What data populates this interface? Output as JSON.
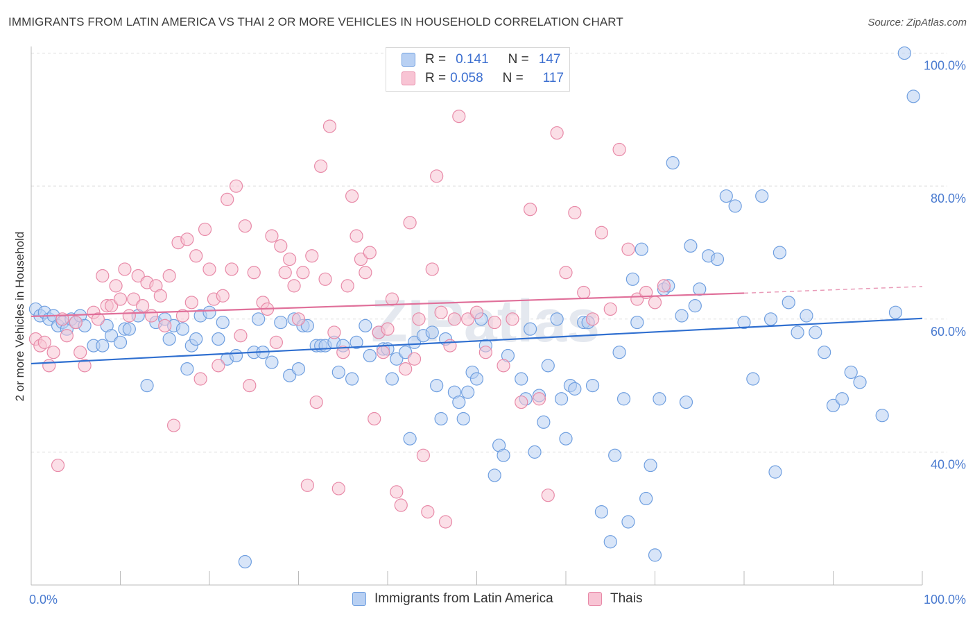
{
  "title": "IMMIGRANTS FROM LATIN AMERICA VS THAI 2 OR MORE VEHICLES IN HOUSEHOLD CORRELATION CHART",
  "source": "Source: ZipAtlas.com",
  "watermark": "ZIPatlas",
  "colors": {
    "blue_fill": "#b8d0f3",
    "blue_stroke": "#6f9fe0",
    "blue_line": "#2f6fd0",
    "pink_fill": "#f8c4d4",
    "pink_stroke": "#e88aa8",
    "pink_line": "#e0709a",
    "tick_text": "#4a7bd0",
    "grid": "#dddddd"
  },
  "legend_top": {
    "rows": [
      {
        "r_label": "R =",
        "r_value": "0.141",
        "n_label": "N =",
        "n_value": "147",
        "series": "blue"
      },
      {
        "r_label": "R =",
        "r_value": "0.058",
        "n_label": "N =",
        "n_value": "117",
        "series": "pink"
      }
    ]
  },
  "chart_data": {
    "type": "scatter",
    "title": "IMMIGRANTS FROM LATIN AMERICA VS THAI 2 OR MORE VEHICLES IN HOUSEHOLD CORRELATION CHART",
    "xlabel": "",
    "ylabel": "2 or more Vehicles in Household",
    "xlim": [
      0,
      100
    ],
    "ylim": [
      20,
      101
    ],
    "x_tick_labels": [
      "0.0%",
      "100.0%"
    ],
    "y_ticks": [
      40,
      60,
      80,
      100
    ],
    "y_tick_labels": [
      "40.0%",
      "60.0%",
      "80.0%",
      "100.0%"
    ],
    "grid": true,
    "legend_position": "top-center and bottom",
    "series": [
      {
        "name": "Immigrants from Latin America",
        "color": "blue",
        "trend": {
          "x": [
            0,
            100
          ],
          "y": [
            53.3,
            60.1
          ],
          "dashed_from": null
        },
        "points": [
          [
            0.5,
            61.5
          ],
          [
            1,
            60.5
          ],
          [
            1.5,
            61
          ],
          [
            2,
            60
          ],
          [
            2.5,
            60.5
          ],
          [
            3,
            59
          ],
          [
            3.5,
            59.5
          ],
          [
            4,
            58.5
          ],
          [
            4.5,
            60
          ],
          [
            5,
            59.5
          ],
          [
            5.5,
            60.5
          ],
          [
            6,
            59
          ],
          [
            7,
            56
          ],
          [
            8,
            56
          ],
          [
            8.5,
            59
          ],
          [
            9,
            57.5
          ],
          [
            10,
            56.5
          ],
          [
            10.5,
            58.5
          ],
          [
            11,
            58.5
          ],
          [
            12,
            60.5
          ],
          [
            13,
            50
          ],
          [
            14,
            59.5
          ],
          [
            15,
            60
          ],
          [
            15.5,
            57
          ],
          [
            16,
            59
          ],
          [
            17,
            58.5
          ],
          [
            17.5,
            52.5
          ],
          [
            18,
            56
          ],
          [
            18.5,
            57
          ],
          [
            19,
            60.5
          ],
          [
            20,
            61
          ],
          [
            21,
            57
          ],
          [
            21.5,
            59.5
          ],
          [
            22,
            54
          ],
          [
            23,
            54.5
          ],
          [
            24,
            23.5
          ],
          [
            25,
            55
          ],
          [
            25.5,
            60
          ],
          [
            26,
            55
          ],
          [
            27,
            53.5
          ],
          [
            28,
            59.5
          ],
          [
            29,
            51.5
          ],
          [
            29.5,
            60
          ],
          [
            30,
            52.5
          ],
          [
            30.5,
            59
          ],
          [
            31,
            59
          ],
          [
            32,
            56
          ],
          [
            32.5,
            56
          ],
          [
            33,
            56
          ],
          [
            34,
            56.5
          ],
          [
            34.5,
            52
          ],
          [
            35,
            56
          ],
          [
            36,
            51
          ],
          [
            36.5,
            56.5
          ],
          [
            37.5,
            59
          ],
          [
            38,
            54.5
          ],
          [
            39,
            58
          ],
          [
            39.5,
            55.5
          ],
          [
            40,
            55.5
          ],
          [
            40.5,
            51
          ],
          [
            41,
            54
          ],
          [
            42,
            55
          ],
          [
            42.5,
            42
          ],
          [
            43,
            56.5
          ],
          [
            44,
            57.5
          ],
          [
            45,
            58
          ],
          [
            45.5,
            50
          ],
          [
            46,
            45
          ],
          [
            46.5,
            57
          ],
          [
            47.5,
            49
          ],
          [
            48,
            47.5
          ],
          [
            48.5,
            45
          ],
          [
            49,
            49
          ],
          [
            49.5,
            52
          ],
          [
            50,
            51
          ],
          [
            50.5,
            60
          ],
          [
            51,
            56
          ],
          [
            52,
            36.5
          ],
          [
            52.5,
            41
          ],
          [
            53,
            39.5
          ],
          [
            53.5,
            54.5
          ],
          [
            55,
            51
          ],
          [
            55.5,
            48
          ],
          [
            56,
            58.5
          ],
          [
            56.5,
            40
          ],
          [
            57,
            48.5
          ],
          [
            57.5,
            44.5
          ],
          [
            58,
            53
          ],
          [
            59,
            60
          ],
          [
            59.5,
            48
          ],
          [
            60,
            42
          ],
          [
            60.5,
            50
          ],
          [
            61,
            49.5
          ],
          [
            62,
            59.5
          ],
          [
            62.5,
            59.5
          ],
          [
            63,
            50
          ],
          [
            64,
            31
          ],
          [
            65,
            26.5
          ],
          [
            65.5,
            39.5
          ],
          [
            66,
            55
          ],
          [
            66.5,
            48
          ],
          [
            67,
            29.5
          ],
          [
            67.5,
            66
          ],
          [
            68,
            59.5
          ],
          [
            68.5,
            70.5
          ],
          [
            69,
            33
          ],
          [
            69.5,
            38
          ],
          [
            70,
            24.5
          ],
          [
            70.5,
            48
          ],
          [
            71,
            64.5
          ],
          [
            71.5,
            65
          ],
          [
            72,
            83.5
          ],
          [
            73,
            60.5
          ],
          [
            73.5,
            47.5
          ],
          [
            74,
            71
          ],
          [
            74.5,
            62
          ],
          [
            75,
            64.5
          ],
          [
            76,
            69.5
          ],
          [
            77,
            69
          ],
          [
            78,
            78.5
          ],
          [
            79,
            77
          ],
          [
            80,
            59.5
          ],
          [
            81,
            51
          ],
          [
            82,
            78.5
          ],
          [
            83,
            60
          ],
          [
            83.5,
            37
          ],
          [
            84,
            70
          ],
          [
            85,
            62.5
          ],
          [
            86,
            58
          ],
          [
            87,
            60.5
          ],
          [
            88,
            58
          ],
          [
            89,
            55
          ],
          [
            90,
            47
          ],
          [
            91,
            48
          ],
          [
            92,
            52
          ],
          [
            93,
            50.5
          ],
          [
            95.5,
            45.5
          ],
          [
            97,
            61
          ],
          [
            98,
            100
          ],
          [
            99,
            93.5
          ]
        ]
      },
      {
        "name": "Thais",
        "color": "pink",
        "trend": {
          "x": [
            0,
            80,
            100
          ],
          "y": [
            60.4,
            63.9,
            64.9
          ],
          "dashed_from": 80
        },
        "points": [
          [
            0.5,
            57
          ],
          [
            1,
            56
          ],
          [
            1.5,
            56.5
          ],
          [
            2,
            53
          ],
          [
            2.5,
            55
          ],
          [
            3,
            38
          ],
          [
            3.5,
            60
          ],
          [
            4,
            57.5
          ],
          [
            5,
            59.5
          ],
          [
            5.5,
            55
          ],
          [
            6,
            53
          ],
          [
            7,
            61
          ],
          [
            7.5,
            60
          ],
          [
            8,
            66.5
          ],
          [
            8.5,
            62
          ],
          [
            9,
            62
          ],
          [
            9.5,
            65
          ],
          [
            10,
            63
          ],
          [
            10.5,
            67.5
          ],
          [
            11,
            60.5
          ],
          [
            11.5,
            63
          ],
          [
            12,
            66.5
          ],
          [
            12.5,
            62
          ],
          [
            13,
            65.5
          ],
          [
            13.5,
            60.5
          ],
          [
            14,
            65
          ],
          [
            14.5,
            63.5
          ],
          [
            15,
            59
          ],
          [
            15.5,
            66.5
          ],
          [
            16,
            44
          ],
          [
            16.5,
            71.5
          ],
          [
            17,
            60.5
          ],
          [
            17.5,
            72
          ],
          [
            18,
            62.5
          ],
          [
            18.5,
            69.5
          ],
          [
            19,
            51
          ],
          [
            19.5,
            73.5
          ],
          [
            20,
            67.5
          ],
          [
            20.5,
            63
          ],
          [
            21,
            53
          ],
          [
            21.5,
            63.5
          ],
          [
            22,
            78
          ],
          [
            22.5,
            67.5
          ],
          [
            23,
            80
          ],
          [
            23.5,
            57.5
          ],
          [
            24,
            74
          ],
          [
            24.5,
            50
          ],
          [
            25,
            67
          ],
          [
            26,
            62.5
          ],
          [
            26.5,
            61.5
          ],
          [
            27,
            72.5
          ],
          [
            27.5,
            56.5
          ],
          [
            28,
            71
          ],
          [
            28.5,
            67
          ],
          [
            29,
            69
          ],
          [
            29.5,
            65
          ],
          [
            30,
            60
          ],
          [
            30.5,
            67
          ],
          [
            31,
            35
          ],
          [
            31.5,
            69.5
          ],
          [
            32,
            47.5
          ],
          [
            32.5,
            83
          ],
          [
            33,
            66
          ],
          [
            33.5,
            89
          ],
          [
            34,
            58
          ],
          [
            34.5,
            34.5
          ],
          [
            35,
            55
          ],
          [
            35.5,
            65
          ],
          [
            36,
            78.5
          ],
          [
            36.5,
            72.5
          ],
          [
            37,
            69
          ],
          [
            37.5,
            67
          ],
          [
            38,
            70
          ],
          [
            38.5,
            45
          ],
          [
            39,
            58
          ],
          [
            39.5,
            55
          ],
          [
            40,
            58.5
          ],
          [
            40.5,
            63
          ],
          [
            41,
            34
          ],
          [
            41.5,
            32
          ],
          [
            42,
            52.5
          ],
          [
            42.5,
            74.5
          ],
          [
            43,
            54
          ],
          [
            43.5,
            60
          ],
          [
            44,
            39.5
          ],
          [
            44.5,
            31
          ],
          [
            45,
            67.5
          ],
          [
            45.5,
            81.5
          ],
          [
            46,
            61
          ],
          [
            46.5,
            29.5
          ],
          [
            47,
            56
          ],
          [
            47.5,
            60
          ],
          [
            48,
            90.5
          ],
          [
            49,
            60
          ],
          [
            50,
            61
          ],
          [
            51,
            55
          ],
          [
            52,
            59.5
          ],
          [
            53,
            53
          ],
          [
            54,
            60
          ],
          [
            55,
            47.5
          ],
          [
            56,
            76.5
          ],
          [
            57,
            48
          ],
          [
            58,
            33.5
          ],
          [
            59,
            88
          ],
          [
            60,
            67
          ],
          [
            61,
            76
          ],
          [
            62,
            64
          ],
          [
            63,
            60
          ],
          [
            64,
            73
          ],
          [
            65,
            61.5
          ],
          [
            66,
            85.5
          ],
          [
            67,
            70.5
          ],
          [
            68,
            63
          ],
          [
            69,
            64
          ],
          [
            70,
            62.5
          ],
          [
            71,
            65
          ]
        ]
      }
    ]
  },
  "legend_bottom": {
    "items": [
      {
        "label": "Immigrants from Latin America",
        "series": "blue"
      },
      {
        "label": "Thais",
        "series": "pink"
      }
    ]
  }
}
